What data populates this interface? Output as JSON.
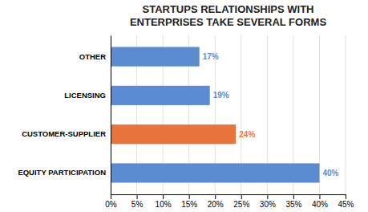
{
  "chart_data": {
    "type": "bar",
    "orientation": "horizontal",
    "title": "STARTUPS RELATIONSHIPS WITH\nENTERPRISES TAKE SEVERAL FORMS",
    "categories": [
      "EQUITY PARTICIPATION",
      "CUSTOMER-SUPPLIER",
      "LICENSING",
      "OTHER"
    ],
    "values": [
      40,
      24,
      19,
      17
    ],
    "value_labels": [
      "40%",
      "24%",
      "19%",
      "17%"
    ],
    "data_labels": true,
    "colors": [
      "#5B8BD0",
      "#E8743B",
      "#5B8BD0",
      "#5B8BD0"
    ],
    "xlim": [
      0,
      45
    ],
    "xticks": [
      {
        "value": 0,
        "label": "0%"
      },
      {
        "value": 5,
        "label": "5%"
      },
      {
        "value": 10,
        "label": "10%"
      },
      {
        "value": 15,
        "label": "15%"
      },
      {
        "value": 20,
        "label": "20%"
      },
      {
        "value": 25,
        "label": "25%"
      },
      {
        "value": 30,
        "label": "30%"
      },
      {
        "value": 35,
        "label": "35%"
      },
      {
        "value": 40,
        "label": "40%"
      },
      {
        "value": 45,
        "label": "45%"
      }
    ],
    "grid": true
  }
}
